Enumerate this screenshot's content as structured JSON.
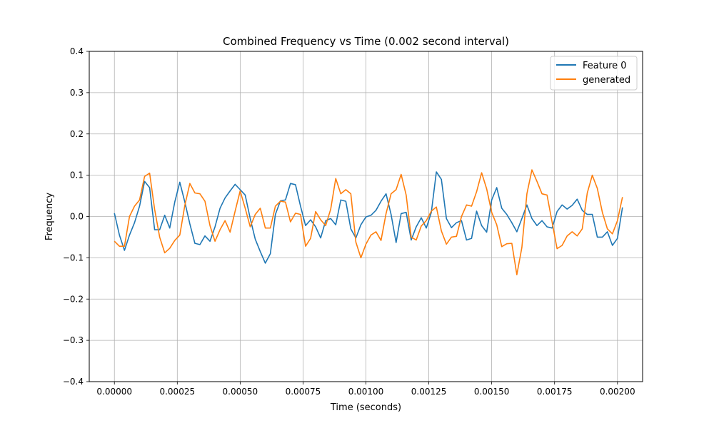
{
  "chart_data": {
    "type": "line",
    "title": "Combined Frequency vs Time (0.002 second interval)",
    "xlabel": "Time (seconds)",
    "ylabel": "Frequency",
    "xlim": [
      -0.0001,
      0.0021
    ],
    "ylim": [
      -0.4,
      0.4
    ],
    "grid": true,
    "legend_position": "top-right",
    "xticks": [
      0.0,
      0.00025,
      0.0005,
      0.00075,
      0.001,
      0.00125,
      0.0015,
      0.00175,
      0.002
    ],
    "xtick_labels": [
      "0.00000",
      "0.00025",
      "0.00050",
      "0.00075",
      "0.00100",
      "0.00125",
      "0.00150",
      "0.00175",
      "0.00200"
    ],
    "yticks": [
      -0.4,
      -0.3,
      -0.2,
      -0.1,
      0.0,
      0.1,
      0.2,
      0.3,
      0.4
    ],
    "ytick_labels": [
      "−0.4",
      "−0.3",
      "−0.2",
      "−0.1",
      "0.0",
      "0.1",
      "0.2",
      "0.3",
      "0.4"
    ],
    "x_start": 0.0,
    "x_step": 2e-05,
    "series": [
      {
        "name": "Feature 0",
        "color": "#1f77b4",
        "values": [
          0.008,
          -0.045,
          -0.082,
          -0.045,
          -0.015,
          0.025,
          0.085,
          0.07,
          -0.032,
          -0.032,
          0.003,
          -0.028,
          0.035,
          0.083,
          0.035,
          -0.018,
          -0.065,
          -0.068,
          -0.047,
          -0.06,
          -0.025,
          0.02,
          0.045,
          0.062,
          0.078,
          0.065,
          0.052,
          -0.005,
          -0.055,
          -0.085,
          -0.113,
          -0.09,
          0.005,
          0.038,
          0.04,
          0.08,
          0.077,
          0.025,
          -0.022,
          -0.008,
          -0.025,
          -0.052,
          -0.01,
          -0.005,
          -0.02,
          0.04,
          0.037,
          -0.03,
          -0.052,
          -0.02,
          -0.001,
          0.003,
          0.015,
          0.037,
          0.055,
          0.005,
          -0.063,
          0.007,
          0.01,
          -0.057,
          -0.025,
          -0.003,
          -0.028,
          0.01,
          0.108,
          0.09,
          -0.005,
          -0.027,
          -0.015,
          -0.01,
          -0.057,
          -0.053,
          0.013,
          -0.022,
          -0.038,
          0.04,
          0.07,
          0.02,
          0.005,
          -0.015,
          -0.037,
          -0.005,
          0.028,
          -0.005,
          -0.022,
          -0.01,
          -0.025,
          -0.028,
          0.012,
          0.028,
          0.018,
          0.027,
          0.042,
          0.015,
          0.005,
          0.005,
          -0.05,
          -0.05,
          -0.037,
          -0.07,
          -0.053,
          0.022
        ]
      },
      {
        "name": "generated",
        "color": "#ff7f0e",
        "values": [
          -0.06,
          -0.072,
          -0.072,
          0.0,
          0.025,
          0.04,
          0.097,
          0.105,
          0.017,
          -0.05,
          -0.088,
          -0.077,
          -0.058,
          -0.045,
          0.027,
          0.08,
          0.057,
          0.055,
          0.037,
          -0.022,
          -0.06,
          -0.032,
          -0.01,
          -0.038,
          0.013,
          0.062,
          0.02,
          -0.025,
          0.005,
          0.02,
          -0.028,
          -0.028,
          0.025,
          0.037,
          0.035,
          -0.013,
          0.008,
          0.005,
          -0.072,
          -0.053,
          0.012,
          -0.008,
          -0.022,
          0.018,
          0.092,
          0.055,
          0.065,
          0.055,
          -0.062,
          -0.1,
          -0.067,
          -0.045,
          -0.037,
          -0.058,
          0.007,
          0.055,
          0.065,
          0.102,
          0.052,
          -0.05,
          -0.057,
          -0.023,
          -0.01,
          0.013,
          0.023,
          -0.035,
          -0.067,
          -0.05,
          -0.048,
          0.0,
          0.028,
          0.025,
          0.06,
          0.106,
          0.067,
          0.01,
          -0.02,
          -0.073,
          -0.066,
          -0.065,
          -0.141,
          -0.075,
          0.055,
          0.113,
          0.085,
          0.055,
          0.052,
          -0.013,
          -0.078,
          -0.07,
          -0.047,
          -0.037,
          -0.047,
          -0.03,
          0.057,
          0.1,
          0.068,
          0.01,
          -0.03,
          -0.042,
          -0.01,
          0.047
        ]
      }
    ]
  }
}
